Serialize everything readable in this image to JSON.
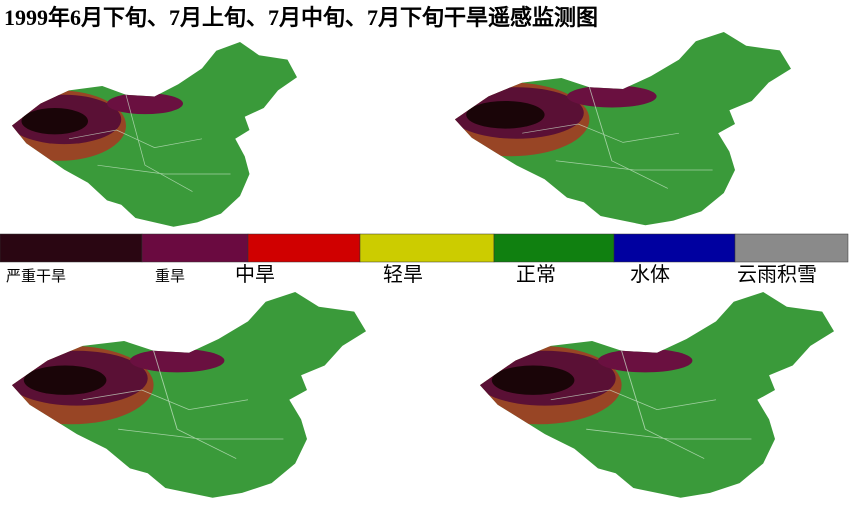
{
  "header": {
    "title": "1999年6月下旬、7月上旬、7月中旬、7月下旬干旱遥感监测图"
  },
  "legend": {
    "items": [
      {
        "label": "严重干旱",
        "color": "#2a0612"
      },
      {
        "label": "重旱",
        "color": "#6a0a40"
      },
      {
        "label": "中旱",
        "color": "#d00000"
      },
      {
        "label": "轻旱",
        "color": "#cccc00"
      },
      {
        "label": "正常",
        "color": "#108010"
      },
      {
        "label": "水体",
        "color": "#0000a0"
      },
      {
        "label": "云雨积雪",
        "color": "#8a8a8a"
      }
    ]
  }
}
